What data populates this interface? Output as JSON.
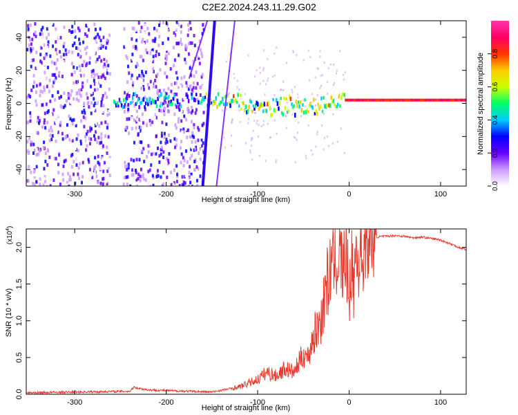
{
  "figure": {
    "title": "C2E2.2024.243.11.29.G02"
  },
  "chart_data": [
    {
      "type": "heatmap",
      "title": "C2E2.2024.243.11.29.G02",
      "xlabel": "Height of straight line (km)",
      "ylabel": "Frequency (Hz)",
      "xlim": [
        -353,
        128
      ],
      "ylim": [
        -50,
        50
      ],
      "x_ticks": [
        -300,
        -200,
        -100,
        0,
        100
      ],
      "y_ticks": [
        -40,
        -20,
        0,
        20,
        40
      ],
      "colorbar": {
        "label": "Normalized spectral amplitude",
        "range": [
          0,
          1
        ],
        "ticks": [
          "0.0",
          "0.2",
          "0.4",
          "0.6",
          "0.8"
        ],
        "colors": [
          "#ffffff",
          "#cc99ff",
          "#6600ff",
          "#0000ff",
          "#00ccff",
          "#00ff66",
          "#ccff00",
          "#ffcc00",
          "#ff3300",
          "#ff0066",
          "#ff33aa"
        ]
      },
      "features": {
        "noise_regions_km": [
          [
            -353,
            -262
          ],
          [
            -248,
            -195
          ],
          [
            -193,
            -160
          ]
        ],
        "main_band_hz": 2,
        "main_band_strong_from_km": -5,
        "streak_lines": [
          {
            "x": [
              -160,
              -147
            ],
            "y": [
              -50,
              50
            ]
          },
          {
            "x": [
              -175,
              -155
            ],
            "y": [
              15,
              50
            ]
          },
          {
            "x": [
              -145,
              -125
            ],
            "y": [
              -50,
              50
            ]
          }
        ]
      }
    },
    {
      "type": "line",
      "xlabel": "Height of straight line (km)",
      "ylabel": "SNR (10 * v/v)",
      "y_multiplier": "(x10",
      "y_multiplier_exp": "4",
      "xlim": [
        -353,
        128
      ],
      "ylim": [
        0,
        2.25
      ],
      "x_ticks": [
        -300,
        -200,
        -100,
        0,
        100
      ],
      "y_ticks": [
        "0.0",
        "0.5",
        "1.0",
        "1.5",
        "2.0"
      ],
      "color": "#e8392c",
      "series": [
        {
          "x": [
            -353,
            -300,
            -240,
            -235,
            -230,
            -220,
            -200,
            -150,
            -120,
            -100,
            -90,
            -80,
            -70,
            -60,
            -50,
            -45,
            -40,
            -35,
            -30,
            -27,
            -25,
            -23,
            -20,
            -18,
            -15,
            -12,
            -10,
            -7,
            -5,
            -2,
            0,
            2,
            5,
            8,
            10,
            12,
            15,
            18,
            20,
            25,
            30,
            40,
            50,
            60,
            70,
            80,
            90,
            100,
            110,
            120,
            128
          ],
          "y": [
            0.02,
            0.03,
            0.04,
            0.1,
            0.08,
            0.06,
            0.05,
            0.03,
            0.1,
            0.2,
            0.3,
            0.25,
            0.35,
            0.3,
            0.55,
            0.5,
            0.75,
            0.9,
            1.05,
            1.3,
            1.6,
            1.4,
            1.8,
            1.7,
            1.9,
            1.75,
            2.0,
            1.6,
            1.9,
            1.7,
            1.3,
            1.8,
            1.5,
            2.05,
            1.7,
            2.0,
            1.85,
            2.1,
            2.05,
            2.1,
            2.14,
            2.15,
            2.16,
            2.15,
            2.13,
            2.14,
            2.12,
            2.1,
            2.05,
            2.0,
            1.97
          ]
        }
      ]
    }
  ]
}
